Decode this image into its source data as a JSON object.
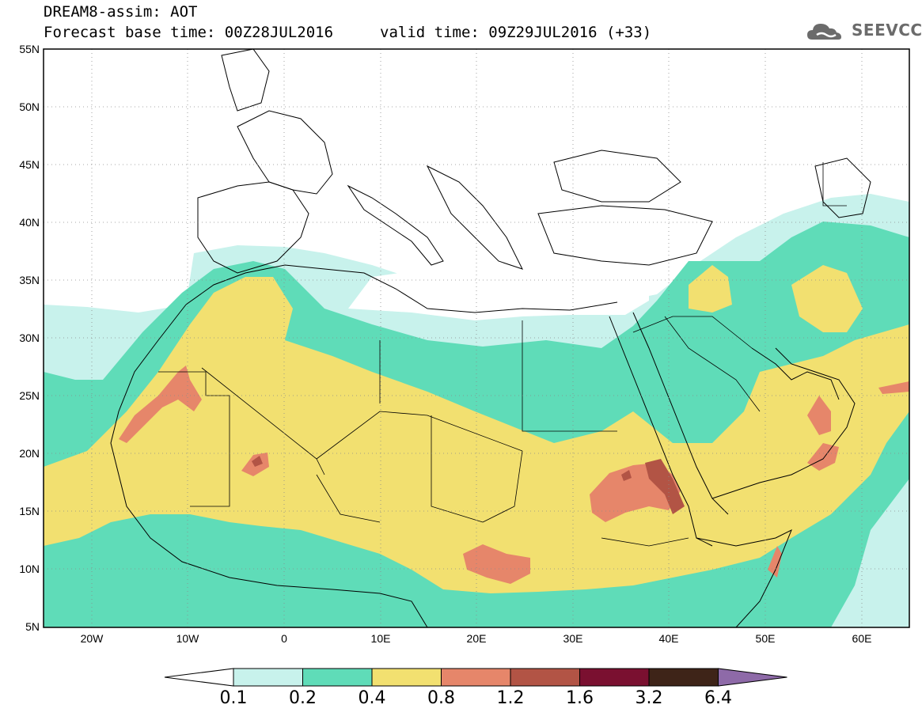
{
  "header": {
    "title": "DREAM8-assim: AOT",
    "base_time_label": "Forecast base time: 00Z28JUL2016",
    "valid_time_label": "valid time: 09Z29JUL2016 (+33)"
  },
  "logo": {
    "text": "SEEVCCC",
    "icon": "cloud-icon"
  },
  "map": {
    "lat_labels": [
      "55N",
      "50N",
      "45N",
      "40N",
      "35N",
      "30N",
      "25N",
      "20N",
      "15N",
      "10N",
      "5N"
    ],
    "lon_labels": [
      "20W",
      "10W",
      "0",
      "10E",
      "20E",
      "30E",
      "40E",
      "50E",
      "60E"
    ],
    "lat_range": [
      5,
      55
    ],
    "lon_range": [
      -25,
      65
    ],
    "grid": true
  },
  "colorbar": {
    "levels": [
      "0.1",
      "0.2",
      "0.4",
      "0.8",
      "1.2",
      "1.6",
      "3.2",
      "6.4"
    ],
    "colors": [
      "#c8f2ec",
      "#5fdcb8",
      "#f2e070",
      "#e6866a",
      "#b25445",
      "#7a1030",
      "#3e2418",
      "#8e6aa8"
    ],
    "under_color": "#ffffff",
    "over_color": "#8e6aa8"
  }
}
